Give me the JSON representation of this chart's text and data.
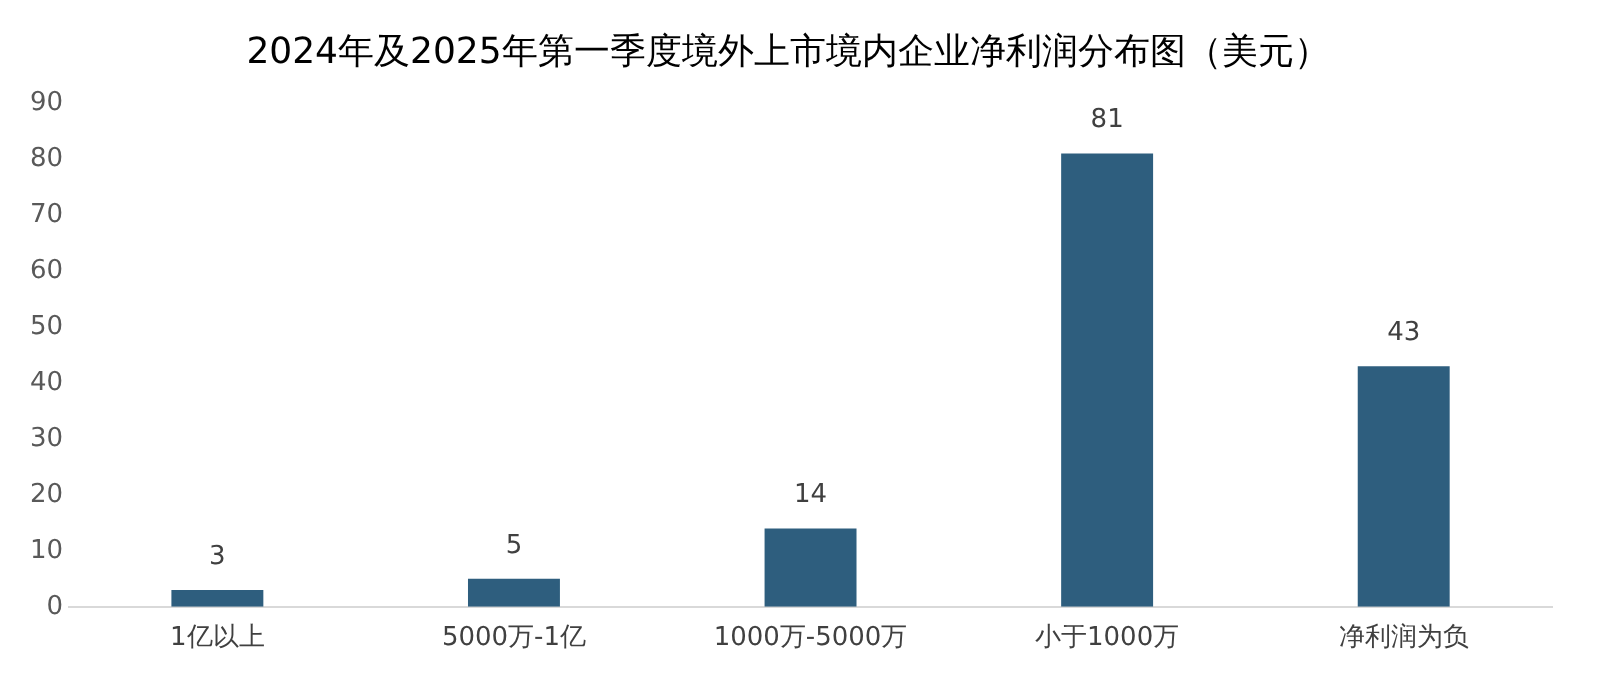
{
  "chart_data": {
    "type": "bar",
    "title": "2024年及2025年第一季度境外上市境内企业净利润分布图（美元）",
    "categories": [
      "1亿以上",
      "5000万-1亿",
      "1000万-5000万",
      "小于1000万",
      "净利润为负"
    ],
    "values": [
      3,
      5,
      14,
      81,
      43
    ],
    "color": "#2e5e7e",
    "ylim": [
      0,
      90
    ],
    "yticks": [
      0,
      10,
      20,
      30,
      40,
      50,
      60,
      70,
      80,
      90
    ],
    "grid": false,
    "data_labels": true
  }
}
